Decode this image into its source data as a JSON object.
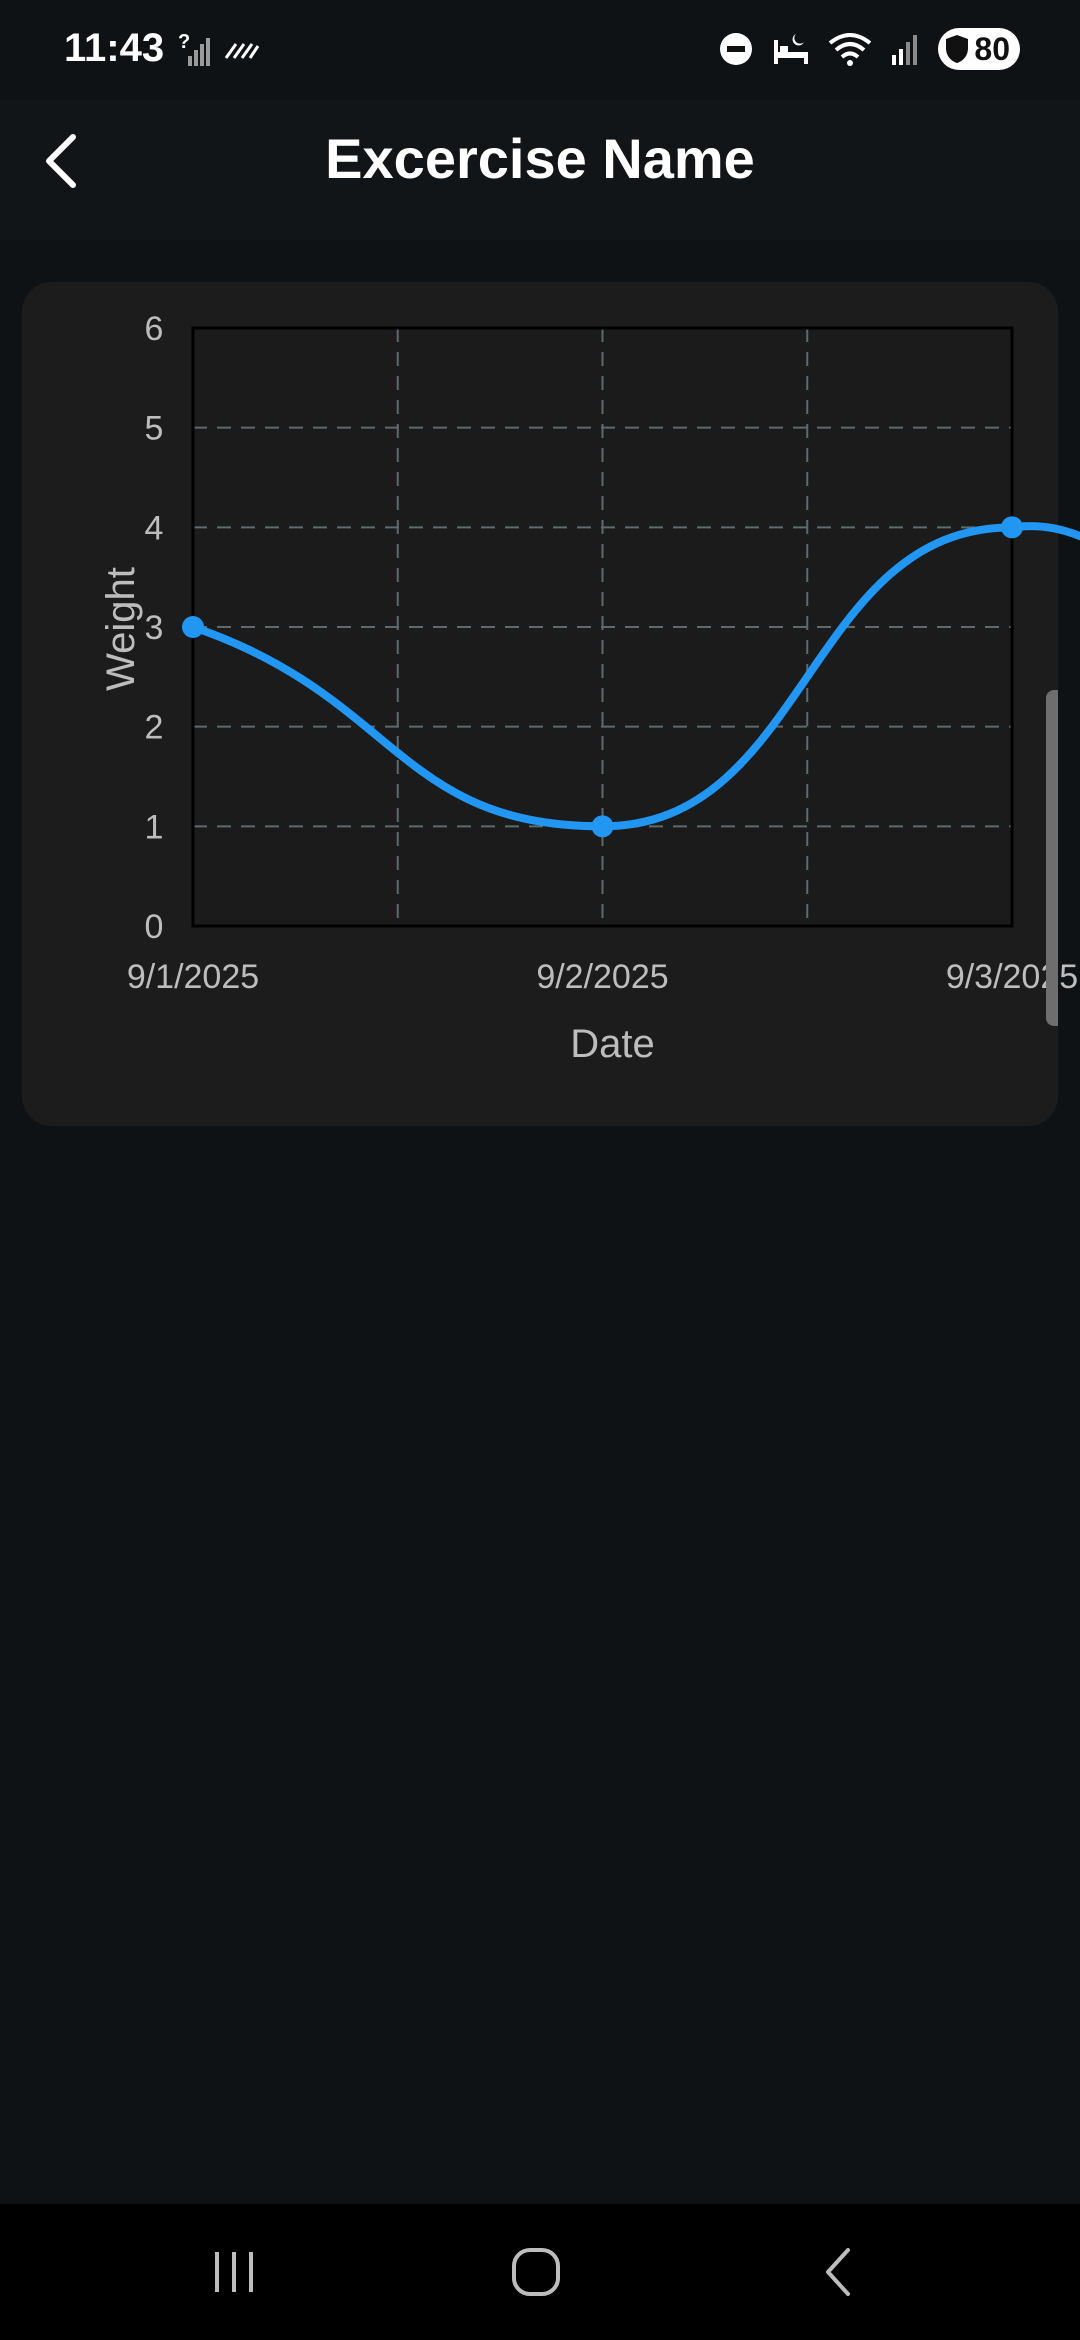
{
  "status_bar": {
    "time": "11:43",
    "battery_level": "80",
    "icons": [
      "no-sim-icon",
      "data-saver-icon",
      "do-not-disturb-icon",
      "sleep-mode-icon",
      "wifi-icon",
      "signal-icon",
      "battery-shield-icon"
    ]
  },
  "app_bar": {
    "title": "Excercise Name",
    "back_icon": "back-arrow-icon"
  },
  "chart_data": {
    "type": "line",
    "xlabel": "Date",
    "ylabel": "Weight",
    "ylim": [
      0,
      6
    ],
    "yticks": [
      "0",
      "1",
      "2",
      "3",
      "4",
      "5",
      "6"
    ],
    "x": [
      "9/1/2025",
      "9/2/2025",
      "9/3/2025"
    ],
    "series": [
      {
        "values": [
          3,
          1,
          4
        ],
        "color": "#2196f3"
      }
    ],
    "grid": true,
    "curved": true
  },
  "nav_bar": {
    "icons": [
      "recent-apps-icon",
      "home-icon",
      "back-icon"
    ]
  },
  "colors": {
    "background": "#0f1215",
    "card": "#1c1c1c",
    "accent": "#2196f3",
    "grid": "#5d6a6e",
    "axis_text": "#bdbdbd"
  }
}
